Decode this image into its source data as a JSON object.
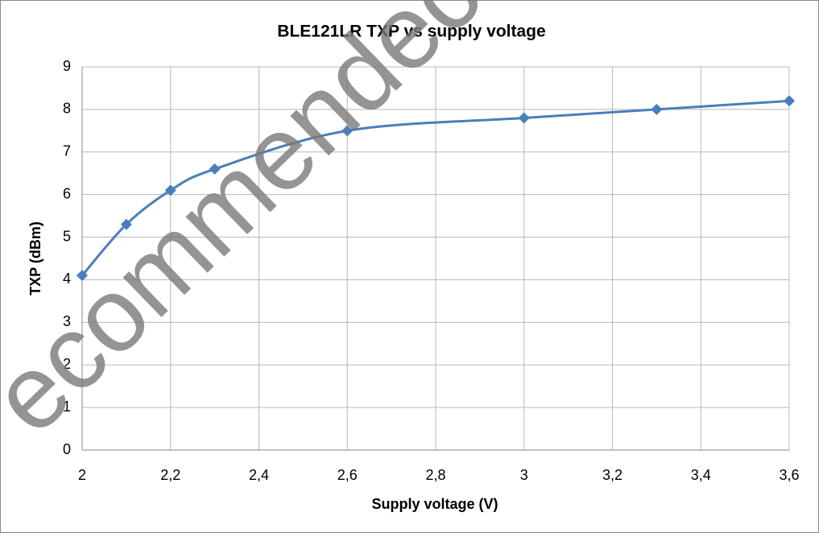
{
  "chart_data": {
    "type": "line",
    "title": "BLE121LR TXP vs supply voltage",
    "x_label": "Supply voltage (V)",
    "y_label": "TXP (dBm)",
    "x": [
      2,
      2.1,
      2.2,
      2.3,
      2.6,
      3,
      3.3,
      3.6
    ],
    "series": [
      {
        "name": "TXP",
        "color": "#4a7ebb",
        "values": [
          4.1,
          5.3,
          6.1,
          6.6,
          7.5,
          7.8,
          8.0,
          8.2
        ]
      }
    ],
    "xlim": [
      2,
      3.6
    ],
    "xticks": [
      2,
      {
        "value": 2.2,
        "label": "2,2"
      },
      {
        "value": 2.4,
        "label": "2,4"
      },
      {
        "value": 2.6,
        "label": "2,6"
      },
      {
        "value": 2.8,
        "label": "2,8"
      },
      3,
      {
        "value": 3.2,
        "label": "3,2"
      },
      {
        "value": 3.4,
        "label": "3,4"
      },
      {
        "value": 3.6,
        "label": "3,6"
      }
    ],
    "ylim": [
      0,
      9
    ],
    "yticks": [
      0,
      1,
      2,
      3,
      4,
      5,
      6,
      7,
      8,
      9
    ],
    "grid": true,
    "smooth": true,
    "watermark": "ecommendec"
  }
}
